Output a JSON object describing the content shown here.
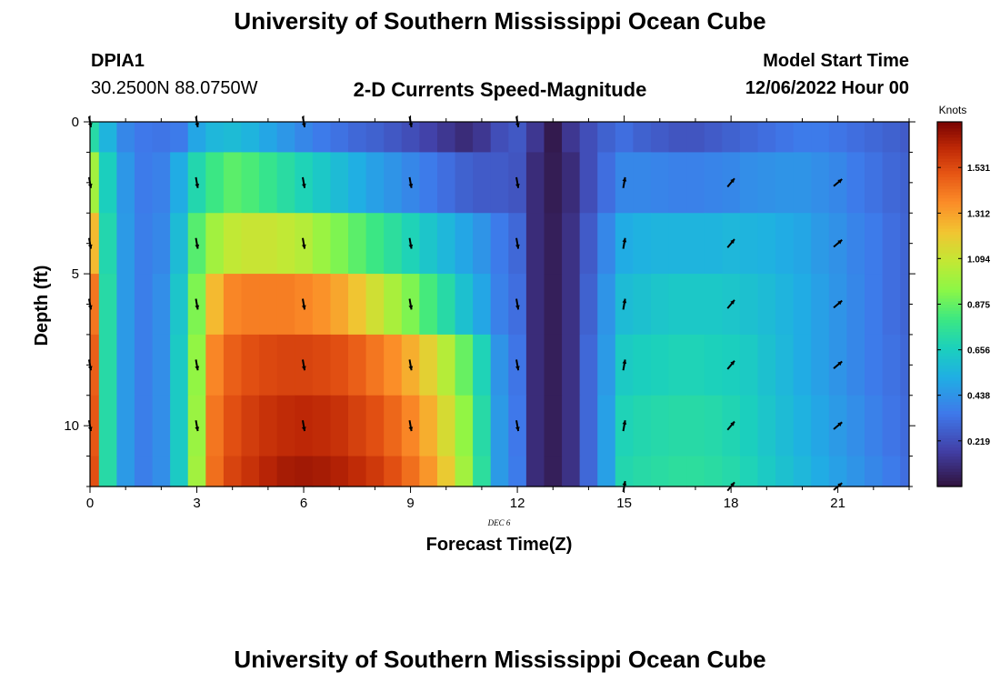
{
  "header": {
    "title": "University of Southern Mississippi Ocean Cube",
    "station": "DPIA1",
    "location": "30.2500N  88.0750W",
    "subtitle": "2-D Currents Speed-Magnitude",
    "model_start_label": "Model Start Time",
    "model_start_value": "12/06/2022 Hour 00"
  },
  "footer": {
    "title": "University of Southern Mississippi Ocean Cube"
  },
  "chart_data": {
    "type": "heatmap",
    "xlabel": "Forecast Time(Z)",
    "xlabel_sub": "DEC 6",
    "ylabel": "Depth (ft)",
    "x_ticks": [
      "0",
      "3",
      "6",
      "9",
      "12",
      "15",
      "18",
      "21"
    ],
    "y_ticks": [
      "0",
      "5",
      "10"
    ],
    "xlim": [
      0,
      23
    ],
    "ylim": [
      0,
      12
    ],
    "y_reversed": true,
    "x_hours": [
      0,
      0.5,
      1,
      1.5,
      2,
      2.5,
      3,
      3.5,
      4,
      4.5,
      5,
      5.5,
      6,
      6.5,
      7,
      7.5,
      8,
      8.5,
      9,
      9.5,
      10,
      10.5,
      11,
      11.5,
      12,
      12.5,
      13,
      13.5,
      14,
      14.5,
      15,
      15.5,
      16,
      16.5,
      17,
      17.5,
      18,
      18.5,
      19,
      19.5,
      20,
      20.5,
      21,
      21.5,
      22,
      22.5,
      23
    ],
    "depth_levels": [
      0,
      2,
      4,
      6,
      8,
      10,
      12
    ],
    "speed_knots": [
      [
        0.72,
        0.55,
        0.4,
        0.35,
        0.34,
        0.36,
        0.5,
        0.56,
        0.58,
        0.55,
        0.5,
        0.45,
        0.4,
        0.36,
        0.33,
        0.3,
        0.28,
        0.25,
        0.22,
        0.18,
        0.14,
        0.1,
        0.14,
        0.22,
        0.25,
        0.14,
        0.03,
        0.14,
        0.22,
        0.28,
        0.32,
        0.28,
        0.26,
        0.24,
        0.24,
        0.26,
        0.28,
        0.3,
        0.32,
        0.34,
        0.36,
        0.36,
        0.34,
        0.32,
        0.3,
        0.28,
        0.26
      ],
      [
        1.0,
        0.66,
        0.45,
        0.36,
        0.38,
        0.52,
        0.7,
        0.8,
        0.86,
        0.83,
        0.78,
        0.73,
        0.68,
        0.63,
        0.58,
        0.53,
        0.48,
        0.44,
        0.4,
        0.36,
        0.32,
        0.28,
        0.26,
        0.26,
        0.24,
        0.1,
        0.04,
        0.1,
        0.22,
        0.32,
        0.4,
        0.4,
        0.39,
        0.38,
        0.38,
        0.39,
        0.4,
        0.42,
        0.43,
        0.44,
        0.44,
        0.42,
        0.4,
        0.36,
        0.33,
        0.3,
        0.28
      ],
      [
        1.25,
        0.7,
        0.46,
        0.37,
        0.4,
        0.58,
        0.85,
        1.0,
        1.08,
        1.1,
        1.1,
        1.08,
        1.05,
        0.98,
        0.92,
        0.86,
        0.8,
        0.74,
        0.68,
        0.62,
        0.56,
        0.5,
        0.44,
        0.36,
        0.3,
        0.1,
        0.05,
        0.12,
        0.26,
        0.4,
        0.52,
        0.54,
        0.55,
        0.55,
        0.55,
        0.55,
        0.56,
        0.55,
        0.54,
        0.52,
        0.5,
        0.46,
        0.43,
        0.39,
        0.36,
        0.32,
        0.29
      ],
      [
        1.42,
        0.72,
        0.46,
        0.37,
        0.42,
        0.62,
        0.92,
        1.25,
        1.38,
        1.4,
        1.4,
        1.4,
        1.38,
        1.35,
        1.3,
        1.22,
        1.12,
        1.02,
        0.92,
        0.82,
        0.72,
        0.6,
        0.5,
        0.38,
        0.32,
        0.1,
        0.05,
        0.12,
        0.28,
        0.44,
        0.58,
        0.6,
        0.62,
        0.63,
        0.63,
        0.63,
        0.62,
        0.6,
        0.58,
        0.55,
        0.52,
        0.48,
        0.44,
        0.4,
        0.36,
        0.32,
        0.29
      ],
      [
        1.48,
        0.72,
        0.46,
        0.37,
        0.42,
        0.64,
        0.96,
        1.38,
        1.48,
        1.52,
        1.54,
        1.55,
        1.55,
        1.54,
        1.52,
        1.48,
        1.42,
        1.36,
        1.28,
        1.18,
        1.05,
        0.88,
        0.68,
        0.44,
        0.34,
        0.1,
        0.05,
        0.12,
        0.3,
        0.46,
        0.64,
        0.66,
        0.67,
        0.68,
        0.68,
        0.67,
        0.66,
        0.64,
        0.6,
        0.56,
        0.52,
        0.48,
        0.44,
        0.4,
        0.36,
        0.33,
        0.3
      ],
      [
        1.5,
        0.72,
        0.46,
        0.37,
        0.42,
        0.64,
        0.98,
        1.42,
        1.52,
        1.57,
        1.6,
        1.62,
        1.63,
        1.62,
        1.6,
        1.56,
        1.52,
        1.46,
        1.38,
        1.28,
        1.14,
        0.96,
        0.72,
        0.46,
        0.35,
        0.1,
        0.05,
        0.12,
        0.3,
        0.48,
        0.68,
        0.7,
        0.71,
        0.72,
        0.72,
        0.71,
        0.69,
        0.66,
        0.62,
        0.58,
        0.54,
        0.5,
        0.46,
        0.42,
        0.38,
        0.34,
        0.31
      ],
      [
        1.52,
        0.72,
        0.46,
        0.37,
        0.42,
        0.64,
        1.0,
        1.44,
        1.55,
        1.6,
        1.64,
        1.67,
        1.68,
        1.67,
        1.65,
        1.62,
        1.58,
        1.52,
        1.44,
        1.34,
        1.2,
        1.0,
        0.74,
        0.46,
        0.36,
        0.1,
        0.05,
        0.12,
        0.3,
        0.48,
        0.7,
        0.72,
        0.73,
        0.74,
        0.74,
        0.73,
        0.71,
        0.68,
        0.64,
        0.6,
        0.56,
        0.52,
        0.48,
        0.44,
        0.4,
        0.36,
        0.32
      ]
    ],
    "arrow_hours": [
      0,
      3,
      6,
      9,
      12,
      15,
      18,
      21
    ],
    "arrow_depths": [
      0,
      2,
      4,
      6,
      8,
      10,
      12
    ],
    "arrow_direction_deg": [
      [
        170,
        170,
        170,
        170,
        170,
        10,
        40,
        50
      ],
      [
        170,
        170,
        170,
        170,
        170,
        10,
        40,
        50
      ],
      [
        170,
        170,
        170,
        170,
        170,
        10,
        40,
        50
      ],
      [
        170,
        170,
        170,
        170,
        170,
        10,
        40,
        50
      ],
      [
        170,
        170,
        170,
        170,
        170,
        10,
        40,
        50
      ],
      [
        170,
        170,
        170,
        170,
        170,
        10,
        40,
        50
      ],
      [
        170,
        170,
        170,
        170,
        170,
        10,
        40,
        50
      ]
    ],
    "arrow_visible": [
      [
        true,
        true,
        true,
        true,
        true,
        false,
        false,
        false
      ],
      [
        true,
        true,
        true,
        true,
        true,
        true,
        true,
        true
      ],
      [
        true,
        true,
        true,
        true,
        true,
        true,
        true,
        true
      ],
      [
        true,
        true,
        true,
        true,
        true,
        true,
        true,
        true
      ],
      [
        true,
        true,
        true,
        true,
        true,
        true,
        true,
        true
      ],
      [
        true,
        true,
        true,
        true,
        true,
        true,
        true,
        true
      ],
      [
        false,
        false,
        false,
        false,
        false,
        true,
        true,
        true
      ]
    ],
    "colorbar": {
      "label": "Knots",
      "ticks": [
        "1.531",
        "1.312",
        "1.094",
        "0.875",
        "0.656",
        "0.438",
        "0.219"
      ],
      "tick_values": [
        1.531,
        1.312,
        1.094,
        0.875,
        0.656,
        0.438,
        0.219
      ],
      "range": [
        0.0,
        1.75
      ],
      "colormap": "turbo"
    }
  }
}
